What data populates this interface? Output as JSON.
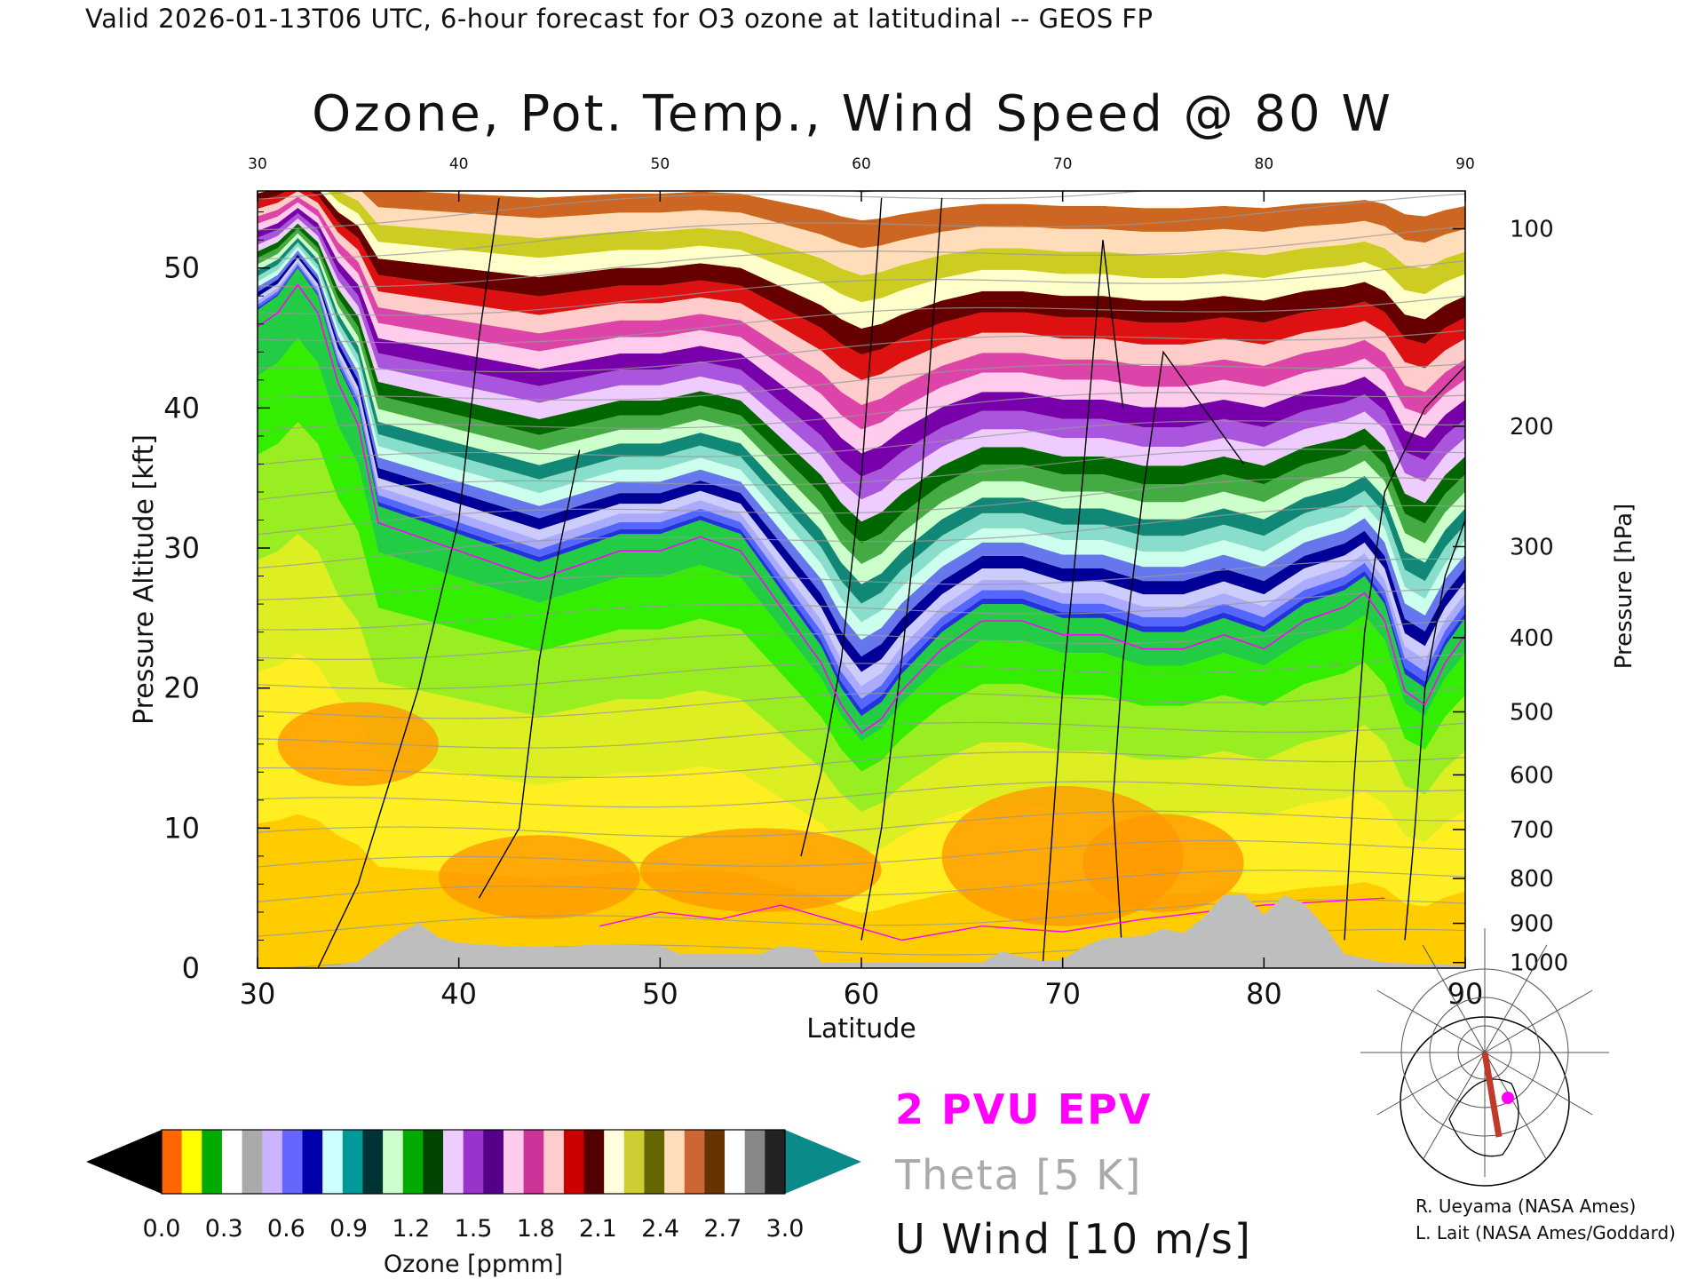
{
  "header": {
    "valid_line": "Valid 2026-01-13T06 UTC, 6-hour forecast for O3 ozone at latitudinal -- GEOS FP"
  },
  "chart_data": {
    "type": "heatmap",
    "title": "Ozone, Pot. Temp., Wind Speed @ 80 W",
    "xlabel": "Latitude",
    "ylabel": "Pressure Altitude [kft]",
    "ylabel_right": "Pressure [hPa]",
    "xlim": [
      30,
      90
    ],
    "ylim": [
      0,
      55.5
    ],
    "x_ticks": [
      "30",
      "40",
      "50",
      "60",
      "70",
      "80",
      "90"
    ],
    "y_ticks": [
      "0",
      "10",
      "20",
      "30",
      "40",
      "50"
    ],
    "pressure_ticks": [
      {
        "label": "100",
        "alt_kft": 52.8
      },
      {
        "label": "200",
        "alt_kft": 38.7
      },
      {
        "label": "300",
        "alt_kft": 30.1
      },
      {
        "label": "400",
        "alt_kft": 23.6
      },
      {
        "label": "500",
        "alt_kft": 18.3
      },
      {
        "label": "600",
        "alt_kft": 13.8
      },
      {
        "label": "700",
        "alt_kft": 9.9
      },
      {
        "label": "800",
        "alt_kft": 6.4
      },
      {
        "label": "900",
        "alt_kft": 3.2
      },
      {
        "label": "1000",
        "alt_kft": 0.4
      }
    ],
    "tropopause_kft": [
      [
        30,
        47
      ],
      [
        31,
        48
      ],
      [
        32,
        50
      ],
      [
        33,
        48
      ],
      [
        34,
        43
      ],
      [
        35,
        40
      ],
      [
        36,
        33
      ],
      [
        38,
        32
      ],
      [
        40,
        31
      ],
      [
        42,
        30
      ],
      [
        44,
        29
      ],
      [
        46,
        30
      ],
      [
        48,
        31
      ],
      [
        50,
        31
      ],
      [
        52,
        32
      ],
      [
        54,
        31
      ],
      [
        56,
        27
      ],
      [
        57,
        25
      ],
      [
        58,
        23
      ],
      [
        59,
        20
      ],
      [
        60,
        18
      ],
      [
        61,
        19
      ],
      [
        62,
        21
      ],
      [
        64,
        24
      ],
      [
        66,
        26
      ],
      [
        68,
        26
      ],
      [
        70,
        25
      ],
      [
        72,
        25
      ],
      [
        74,
        24
      ],
      [
        76,
        24
      ],
      [
        78,
        25
      ],
      [
        80,
        24
      ],
      [
        82,
        26
      ],
      [
        84,
        27
      ],
      [
        85,
        28
      ],
      [
        86,
        26
      ],
      [
        87,
        21
      ],
      [
        88,
        20
      ],
      [
        89,
        23
      ],
      [
        90,
        25
      ]
    ],
    "terrain_kft": [
      [
        30,
        0
      ],
      [
        33,
        0
      ],
      [
        35,
        0.5
      ],
      [
        36,
        1.5
      ],
      [
        37,
        2.5
      ],
      [
        38,
        3.2
      ],
      [
        39,
        2.2
      ],
      [
        40,
        1.8
      ],
      [
        42,
        1.6
      ],
      [
        45,
        1.5
      ],
      [
        47,
        1.7
      ],
      [
        50,
        1.6
      ],
      [
        51,
        1
      ],
      [
        55,
        1
      ],
      [
        56,
        1.6
      ],
      [
        57.5,
        1.4
      ],
      [
        58,
        0.4
      ],
      [
        66,
        0.4
      ],
      [
        67,
        1.2
      ],
      [
        68,
        0.8
      ],
      [
        69,
        0.5
      ],
      [
        70,
        0.6
      ],
      [
        71,
        1.5
      ],
      [
        72,
        2.1
      ],
      [
        74,
        2.3
      ],
      [
        75,
        2.8
      ],
      [
        76,
        2.5
      ],
      [
        77,
        3.6
      ],
      [
        78,
        5.2
      ],
      [
        79,
        5.3
      ],
      [
        80,
        3.8
      ],
      [
        81,
        5.2
      ],
      [
        82,
        4.6
      ],
      [
        83,
        3
      ],
      [
        84,
        1
      ],
      [
        86,
        0.4
      ],
      [
        90,
        0.2
      ]
    ],
    "ozone_colorbar": {
      "label": "Ozone [ppmm]",
      "range": [
        0.0,
        3.0
      ],
      "tick_labels": [
        "0.0",
        "0.3",
        "0.6",
        "0.9",
        "1.2",
        "1.5",
        "1.8",
        "2.1",
        "2.4",
        "2.7",
        "3.0"
      ],
      "colors": [
        "#000000",
        "#ff6600",
        "#ffff00",
        "#00aa00",
        "#ffffff",
        "#aaaaaa",
        "#ccb3ff",
        "#6666ff",
        "#0000aa",
        "#ccffff",
        "#009999",
        "#003333",
        "#ccffcc",
        "#00aa00",
        "#004400",
        "#eeccff",
        "#9933cc",
        "#550088",
        "#ffccee",
        "#cc3399",
        "#ffcccc",
        "#cc0000",
        "#550000",
        "#ffffdd",
        "#cccc33",
        "#666600",
        "#ffddbb",
        "#cc6633",
        "#663300",
        "#ffffff",
        "#888888",
        "#222222",
        "#008888"
      ]
    },
    "legend": {
      "epv": "2 PVU EPV",
      "theta": "Theta [5 K]",
      "wind": "U Wind [10 m/s]"
    },
    "colors": {
      "epv": "#ff00ff",
      "theta": "#999999",
      "wind": "#000000",
      "terrain": "#bebebe",
      "stratosphere_top": "#0b8a8a"
    }
  },
  "credits": {
    "line1": "R. Ueyama (NASA Ames)",
    "line2": "L. Lait (NASA Ames/Goddard)"
  },
  "inset_map": {
    "description_icon": "polar-map-icon",
    "track_color": "#c0392b",
    "marker_color": "#ff00ff"
  }
}
